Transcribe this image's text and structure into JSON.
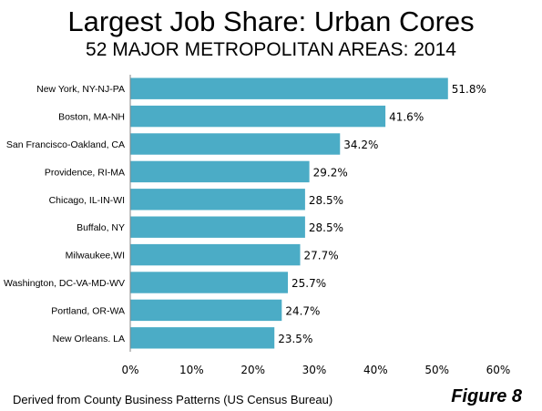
{
  "chart_data": {
    "type": "bar",
    "orientation": "horizontal",
    "title": "Largest Job Share: Urban Cores",
    "subtitle": "52 MAJOR METROPOLITAN AREAS: 2014",
    "categories": [
      "New York, NY-NJ-PA",
      "Boston, MA-NH",
      "San Francisco-Oakland, CA",
      "Providence, RI-MA",
      "Chicago, IL-IN-WI",
      "Buffalo, NY",
      "Milwaukee,WI",
      "Washington, DC-VA-MD-WV",
      "Portland, OR-WA",
      "New Orleans. LA"
    ],
    "values": [
      51.8,
      41.6,
      34.2,
      29.2,
      28.5,
      28.5,
      27.7,
      25.7,
      24.7,
      23.5
    ],
    "data_labels": [
      "51.8%",
      "41.6%",
      "34.2%",
      "29.2%",
      "28.5%",
      "28.5%",
      "27.7%",
      "25.7%",
      "24.7%",
      "23.5%"
    ],
    "xlim": [
      0,
      60
    ],
    "x_ticks": [
      0,
      10,
      20,
      30,
      40,
      50,
      60
    ],
    "x_tick_labels": [
      "0%",
      "10%",
      "20%",
      "30%",
      "40%",
      "50%",
      "60%"
    ],
    "xlabel": "",
    "ylabel": "",
    "grid": false,
    "bar_color": "#4bacc6"
  },
  "footer": {
    "source": "Derived from County Business Patterns (US Census Bureau)",
    "figure_label": "Figure 8"
  }
}
